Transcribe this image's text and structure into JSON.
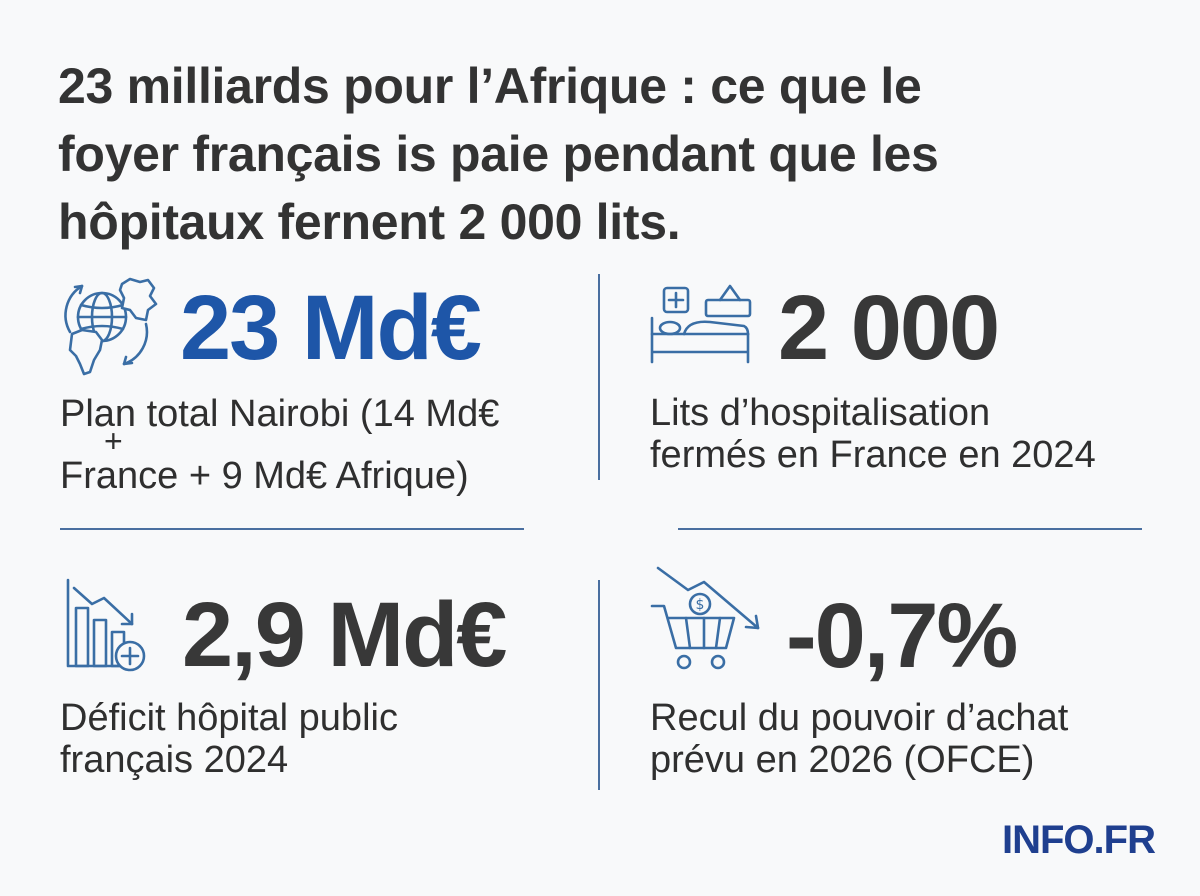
{
  "headline": {
    "lines": [
      "23 milliards pour l’Afrique : ce que le",
      "foyer français is paie pendant que les",
      "hôpitaux fernent 2 000 lits."
    ]
  },
  "stats": [
    {
      "icon": "globe-africa-europe-icon",
      "value": "23 Md€",
      "value_color": "#1e56a8",
      "desc_lines": [
        "Plan total Nairobi (14 Md€",
        "+",
        "France + 9 Md€ Afrique)"
      ]
    },
    {
      "icon": "hospital-bed-icon",
      "value": "2 000",
      "value_color": "#383838",
      "desc_lines": [
        "Lits d’hospitalisation",
        "fermés en France en 2024"
      ]
    },
    {
      "icon": "declining-chart-medical-icon",
      "value": "2,9 Md€",
      "value_color": "#383838",
      "desc_lines": [
        "Déficit hôpital public",
        "français 2024"
      ]
    },
    {
      "icon": "shopping-cart-decline-icon",
      "value": "-0,7%",
      "value_color": "#383838",
      "desc_lines": [
        "Recul du pouvoir d’achat",
        "prévu en 2026 (OFCE)"
      ]
    }
  ],
  "brand": {
    "label": "INFO.FR",
    "color": "#1f3f8f"
  },
  "colors": {
    "accent_blue": "#1e56a8",
    "icon_blue": "#3a6ea5",
    "text_dark": "#383838",
    "divider": "#4a6fa0"
  }
}
